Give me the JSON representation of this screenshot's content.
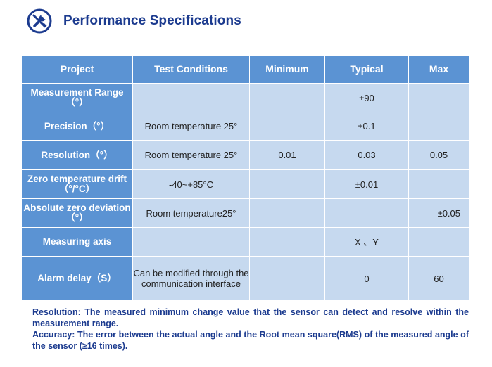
{
  "header": {
    "title": "Performance Specifications",
    "icon": "wrench-screwdriver-icon",
    "accent_color": "#1c3b8f"
  },
  "table": {
    "header_color": "#5b93d3",
    "cell_color": "#c6d9ef",
    "columns": [
      "Project",
      "Test Conditions",
      "Minimum",
      "Typical",
      "Max"
    ],
    "rows": [
      {
        "project": "Measurement Range（°）",
        "conditions": "",
        "minimum": "",
        "typical": "±90",
        "max": ""
      },
      {
        "project": "Precision（°）",
        "conditions": "Room temperature 25°",
        "minimum": "",
        "typical": "±0.1",
        "max": ""
      },
      {
        "project": "Resolution（°）",
        "conditions": "Room temperature 25°",
        "minimum": "0.01",
        "typical": "0.03",
        "max": "0.05"
      },
      {
        "project": "Zero temperature drift（°/°C）",
        "conditions": "-40~+85°C",
        "minimum": "",
        "typical": "±0.01",
        "max": ""
      },
      {
        "project": "Absolute zero deviation（°）",
        "conditions": "Room temperature25°",
        "minimum": "",
        "typical": "",
        "max": "±0.05"
      },
      {
        "project": "Measuring axis",
        "conditions": "",
        "minimum": "",
        "typical": "X 、Y",
        "max": ""
      },
      {
        "project": "Alarm delay（S）",
        "conditions": "Can be modified through the communication interface",
        "minimum": "",
        "typical": "0",
        "max": "60"
      }
    ]
  },
  "notes": [
    "Resolution: The measured minimum change value that the sensor can detect and resolve within the measurement range.",
    "Accuracy: The error between the actual angle and the Root mean square(RMS) of the measured angle of the sensor (≥16 times)."
  ]
}
